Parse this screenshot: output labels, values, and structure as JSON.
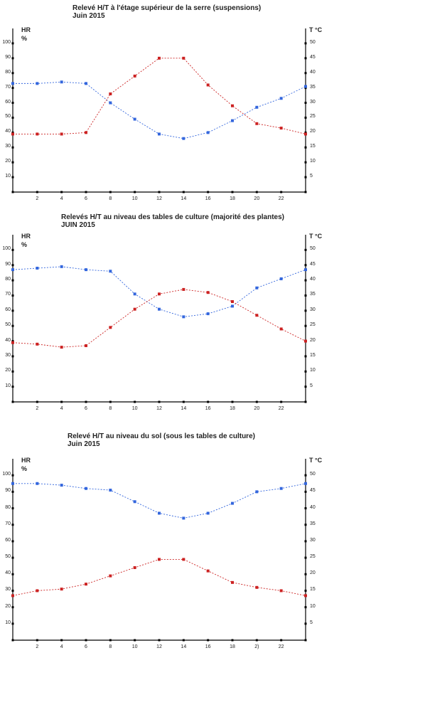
{
  "chart_data": [
    {
      "type": "line",
      "title": "Relevé H/T à l'étage supérieur de la serre (suspensions)",
      "subtitle": "Juin 2015",
      "ylabel_left": "HR",
      "ylabel_left_unit": "%",
      "ylabel_right": "T °C",
      "x": [
        0,
        2,
        4,
        6,
        8,
        10,
        12,
        14,
        16,
        18,
        20,
        22,
        24
      ],
      "x_tick_labels": [
        "2",
        "4",
        "6",
        "8",
        "10",
        "12",
        "14",
        "16",
        "18",
        "20",
        "22"
      ],
      "ylim_left": [
        0,
        110
      ],
      "ylim_right": [
        0,
        55
      ],
      "y_left_ticks": [
        "10",
        "20",
        "30",
        "40",
        "50",
        "60",
        "70",
        "80",
        "90",
        "100"
      ],
      "y_right_ticks": [
        "5",
        "10",
        "15",
        "20",
        "25",
        "30",
        "35",
        "40",
        "45",
        "50"
      ],
      "series": [
        {
          "color": "#3366dd",
          "axis": "left",
          "values": [
            73,
            73,
            74,
            73,
            60,
            49,
            39,
            36,
            40,
            48,
            57,
            63,
            71
          ]
        },
        {
          "color": "#cc2222",
          "axis": "right",
          "values": [
            19.5,
            19.5,
            19.5,
            20,
            33,
            39,
            45,
            45,
            36,
            29,
            23,
            21.5,
            19.5
          ]
        }
      ]
    },
    {
      "type": "line",
      "title": "Relevés H/T au niveau des tables de culture (majorité des plantes)",
      "subtitle": "JUIN 2015",
      "ylabel_left": "HR",
      "ylabel_left_unit": "%",
      "ylabel_right": "T °C",
      "x": [
        0,
        2,
        4,
        6,
        8,
        10,
        12,
        14,
        16,
        18,
        20,
        22,
        24
      ],
      "x_tick_labels": [
        "2",
        "4",
        "6",
        "8",
        "10",
        "12",
        "14",
        "16",
        "18",
        "20",
        "22"
      ],
      "ylim_left": [
        0,
        110
      ],
      "ylim_right": [
        0,
        55
      ],
      "y_left_ticks": [
        "10",
        "20",
        "30",
        "40",
        "50",
        "60",
        "70",
        "80",
        "90",
        "100"
      ],
      "y_right_ticks": [
        "5",
        "10",
        "15",
        "20",
        "25",
        "30",
        "35",
        "40",
        "45",
        "50"
      ],
      "series": [
        {
          "color": "#3366dd",
          "axis": "left",
          "values": [
            87,
            88,
            89,
            87,
            86,
            71,
            61,
            56,
            58,
            63,
            75,
            81,
            87
          ]
        },
        {
          "color": "#cc2222",
          "axis": "right",
          "values": [
            19.5,
            19,
            18,
            18.5,
            24.5,
            30.5,
            35.5,
            37,
            36,
            33,
            28.5,
            24,
            20
          ]
        }
      ]
    },
    {
      "type": "line",
      "title": "Relevé H/T au niveau du sol (sous les tables de culture)",
      "subtitle": "Juin 2015",
      "ylabel_left": "HR",
      "ylabel_left_unit": "%",
      "ylabel_right": "T °C",
      "x": [
        0,
        2,
        4,
        6,
        8,
        10,
        12,
        14,
        16,
        18,
        20,
        22,
        24
      ],
      "x_tick_labels": [
        "2",
        "4",
        "6",
        "8",
        "10",
        "12",
        "14",
        "16",
        "18",
        "2)",
        "22"
      ],
      "ylim_left": [
        0,
        110
      ],
      "ylim_right": [
        0,
        55
      ],
      "y_left_ticks": [
        "10",
        "20",
        "30",
        "40",
        "50",
        "60",
        "70",
        "80",
        "90",
        "100"
      ],
      "y_right_ticks": [
        "5",
        "10",
        "15",
        "20",
        "25",
        "30",
        "35",
        "40",
        "45",
        "50"
      ],
      "series": [
        {
          "color": "#3366dd",
          "axis": "left",
          "values": [
            95,
            95,
            94,
            92,
            91,
            84,
            77,
            74,
            77,
            83,
            90,
            92,
            95
          ]
        },
        {
          "color": "#cc2222",
          "axis": "right",
          "values": [
            13.5,
            15,
            15.5,
            17,
            19.5,
            22,
            24.5,
            24.5,
            21,
            17.5,
            16,
            15,
            13.5
          ]
        }
      ]
    }
  ]
}
